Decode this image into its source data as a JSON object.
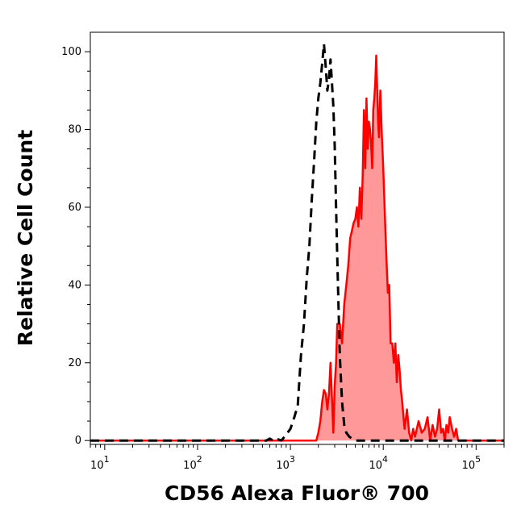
{
  "chart_data": {
    "type": "area",
    "xlabel": "CD56 Alexa Fluor® 700",
    "ylabel": "Relative Cell Count",
    "x_scale": "log",
    "xlim": [
      7,
      200000
    ],
    "ylim": [
      -1,
      105
    ],
    "x_ticks": [
      {
        "value": 10,
        "base": "10",
        "exp": "1"
      },
      {
        "value": 100,
        "base": "10",
        "exp": "2"
      },
      {
        "value": 1000,
        "base": "10",
        "exp": "3"
      },
      {
        "value": 10000,
        "base": "10",
        "exp": "4"
      },
      {
        "value": 100000,
        "base": "10",
        "exp": "5"
      }
    ],
    "y_ticks": [
      0,
      20,
      40,
      60,
      80,
      100
    ],
    "grid": false,
    "legend": "none",
    "series": [
      {
        "style": "dashed",
        "color": "#000000",
        "fill": "none",
        "x": [
          7,
          550,
          600,
          650,
          700,
          800,
          900,
          1000,
          1100,
          1200,
          1300,
          1400,
          1500,
          1600,
          1700,
          1800,
          1900,
          2000,
          2100,
          2200,
          2300,
          2400,
          2500,
          2600,
          2700,
          2800,
          2900,
          3000,
          3100,
          3200,
          3300,
          3400,
          3600,
          3800,
          4000,
          4300,
          4600,
          5000,
          200000
        ],
        "y": [
          0,
          0,
          0.5,
          0,
          0.5,
          0,
          1.5,
          3,
          6,
          9,
          22,
          30,
          42,
          50,
          62,
          72,
          82,
          88,
          92,
          97,
          102,
          96,
          90,
          93,
          98,
          92,
          86,
          76,
          60,
          47,
          34,
          22,
          10,
          4,
          2,
          1,
          0.5,
          0,
          0
        ]
      },
      {
        "style": "solid",
        "color": "#ff0000",
        "fill": "#ff9999",
        "x": [
          7,
          1900,
          2000,
          2100,
          2200,
          2300,
          2400,
          2500,
          2600,
          2700,
          2800,
          2900,
          3000,
          3100,
          3200,
          3400,
          3600,
          3800,
          4000,
          4200,
          4400,
          4600,
          4800,
          5000,
          5200,
          5400,
          5600,
          5800,
          6000,
          6200,
          6400,
          6600,
          6800,
          7000,
          7200,
          7400,
          7600,
          7800,
          8000,
          8200,
          8400,
          8600,
          8800,
          9000,
          9300,
          9600,
          10000,
          10400,
          10800,
          11200,
          11600,
          12000,
          12500,
          13000,
          13500,
          14000,
          14500,
          15000,
          15500,
          16000,
          16500,
          17000,
          18000,
          19000,
          20000,
          21000,
          22000,
          24000,
          26000,
          28000,
          30000,
          32000,
          34000,
          36000,
          38000,
          40000,
          42000,
          44000,
          46000,
          48000,
          50000,
          52000,
          55000,
          58000,
          61000,
          64000,
          200000
        ],
        "y": [
          0,
          0,
          2,
          5,
          10,
          13,
          12,
          8,
          12,
          20,
          11,
          2,
          14,
          20,
          30,
          30,
          25,
          35,
          40,
          45,
          52,
          54,
          56,
          57,
          60,
          55,
          65,
          57,
          68,
          85,
          70,
          88,
          75,
          82,
          80,
          76,
          70,
          85,
          88,
          92,
          99,
          90,
          82,
          78,
          90,
          80,
          70,
          58,
          47,
          38,
          40,
          25,
          25,
          20,
          25,
          15,
          22,
          18,
          13,
          10,
          6,
          3,
          8,
          2,
          0,
          3,
          1,
          5,
          2,
          3,
          6,
          0,
          4,
          1,
          3,
          8,
          2,
          3,
          0,
          4,
          2,
          6,
          3,
          1,
          3,
          0,
          0
        ]
      }
    ]
  }
}
